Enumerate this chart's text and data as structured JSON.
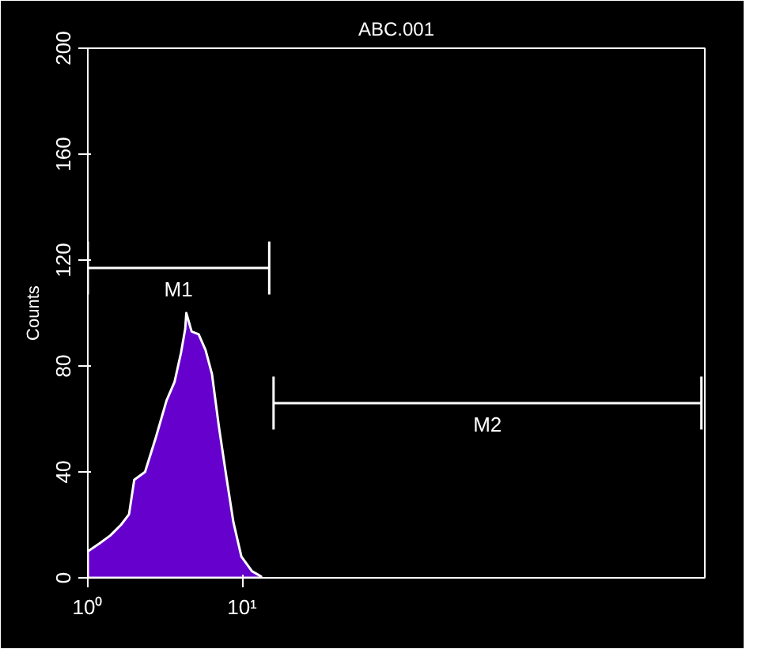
{
  "chart_data": {
    "type": "area",
    "title": "ABC.001",
    "ylabel": "Counts",
    "log": "x",
    "xlim": [
      1,
      10000
    ],
    "xticks": [
      {
        "value": 1,
        "label": "10⁰"
      },
      {
        "value": 10,
        "label": "10¹"
      }
    ],
    "ylim": [
      0,
      200
    ],
    "yticks": [
      0,
      40,
      80,
      120,
      160,
      200
    ],
    "grid": false,
    "marker": "none",
    "series": [
      {
        "color": "#6600cc",
        "x": [
          1,
          1.19,
          1.4,
          1.64,
          1.85,
          2.0,
          2.35,
          2.76,
          3.24,
          3.65,
          4.02,
          4.28,
          4.35,
          4.71,
          5.23,
          5.8,
          6.38,
          7.08,
          7.92,
          8.79,
          9.9,
          11.6,
          13.3
        ],
        "values": [
          10,
          13,
          16,
          20,
          24,
          37,
          40,
          53,
          67,
          74,
          85,
          94,
          100,
          93,
          92,
          86,
          77,
          57,
          38,
          21,
          8,
          2.5,
          0.5
        ]
      },
      {
        "type": "line",
        "name": "M1",
        "color": "#ffffff",
        "x": [
          1,
          15
        ],
        "values": [
          117,
          117
        ],
        "errors": [
          10,
          10
        ]
      },
      {
        "type": "line",
        "name": "M2",
        "color": "#ffffff",
        "x": [
          16,
          9500
        ],
        "values": [
          66,
          66
        ],
        "errors": [
          10,
          10
        ]
      }
    ]
  }
}
